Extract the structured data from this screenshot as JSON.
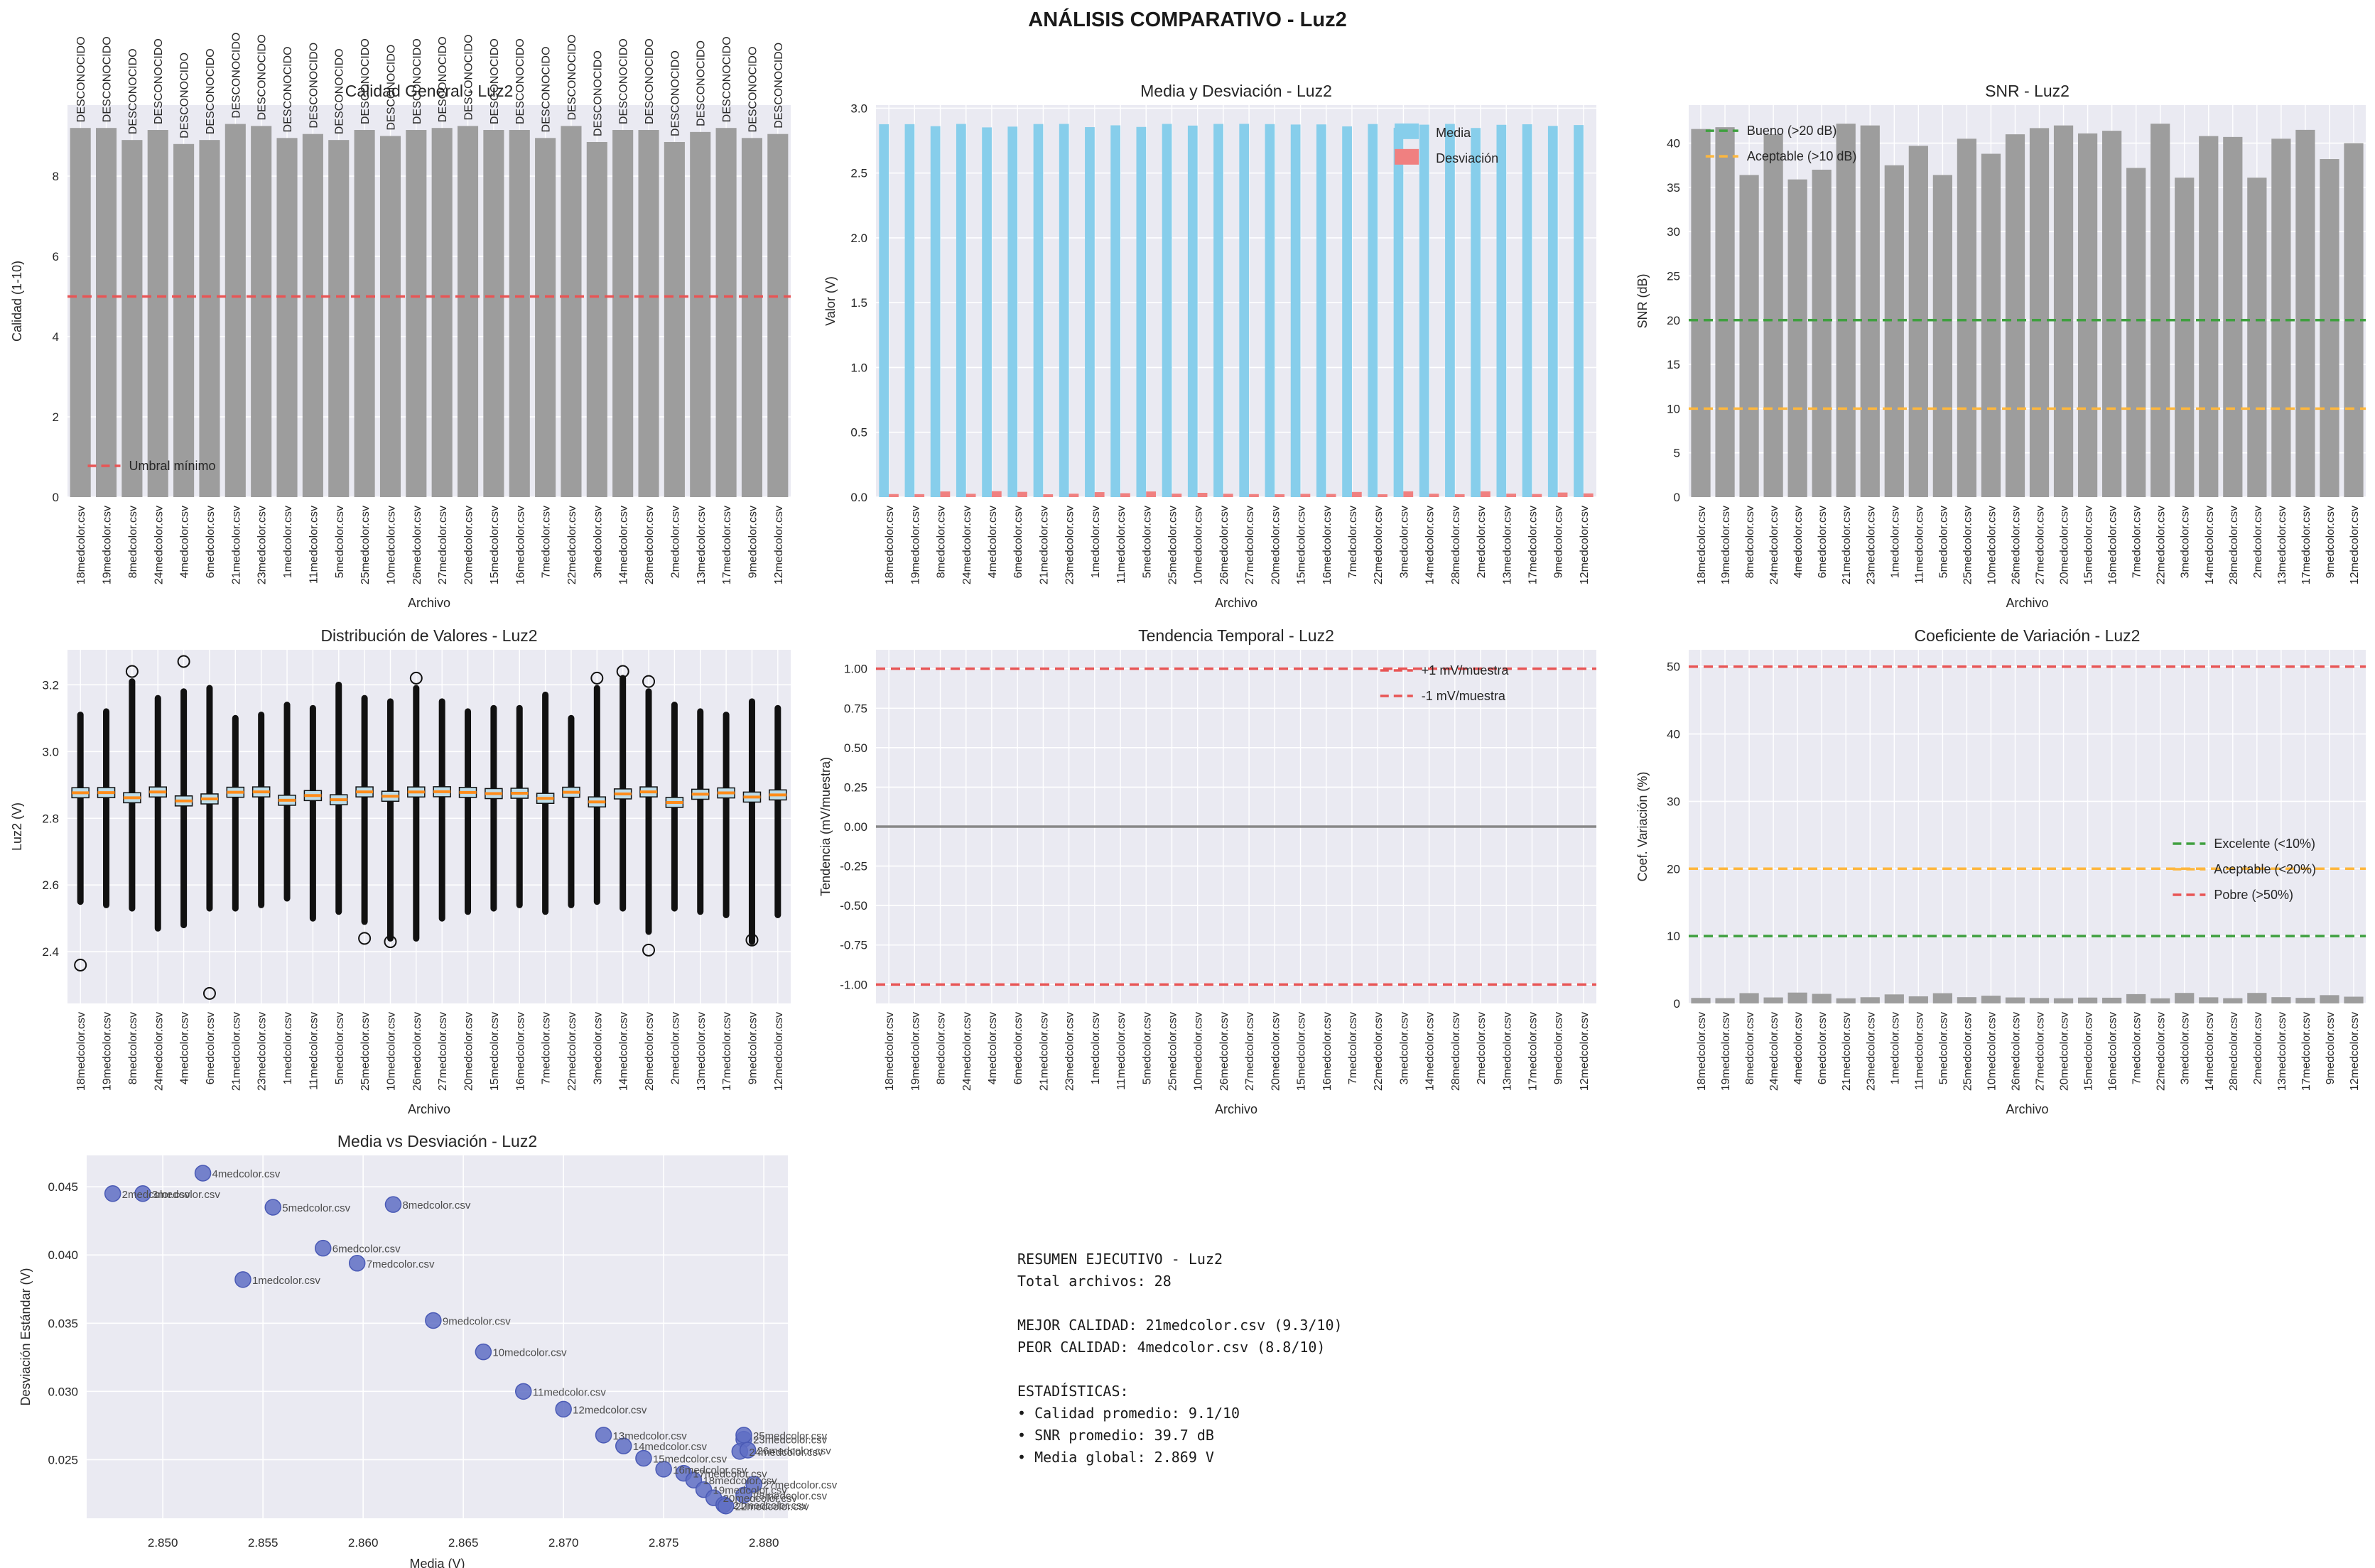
{
  "title": "ANÁLISIS COMPARATIVO - Luz2",
  "files": [
    "18medcolor.csv",
    "19medcolor.csv",
    "8medcolor.csv",
    "24medcolor.csv",
    "4medcolor.csv",
    "6medcolor.csv",
    "21medcolor.csv",
    "23medcolor.csv",
    "1medcolor.csv",
    "11medcolor.csv",
    "5medcolor.csv",
    "25medcolor.csv",
    "10medcolor.csv",
    "26medcolor.csv",
    "27medcolor.csv",
    "20medcolor.csv",
    "15medcolor.csv",
    "16medcolor.csv",
    "7medcolor.csv",
    "22medcolor.csv",
    "3medcolor.csv",
    "14medcolor.csv",
    "28medcolor.csv",
    "2medcolor.csv",
    "13medcolor.csv",
    "17medcolor.csv",
    "9medcolor.csv",
    "12medcolor.csv"
  ],
  "colors": {
    "axes_bg": "#eaeaf2",
    "grid": "#ffffff",
    "bar_gray": "#9d9d9d",
    "media_blue": "#87ceeb",
    "desv_salmon": "#f08080",
    "red_line": "#e85555",
    "green_line": "#3fa03f",
    "orange_line": "#fdb73e",
    "zero_gray": "#888888",
    "box_face": "#bedde9",
    "median_orange": "#ff8c1a",
    "scatter_fill": "#5f6fc4",
    "scatter_edge": "#4a5ab5",
    "text": "#262626"
  },
  "summary": {
    "text": "RESUMEN EJECUTIVO - Luz2\nTotal archivos: 28\n\nMEJOR CALIDAD: 21medcolor.csv (9.3/10)\nPEOR CALIDAD: 4medcolor.csv (8.8/10)\n\nESTADÍSTICAS:\n• Calidad promedio: 9.1/10\n• SNR promedio: 39.7 dB\n• Media global: 2.869 V"
  },
  "chart_data": [
    {
      "id": "calidad",
      "type": "bar",
      "title": "Calidad General - Luz2",
      "xlabel": "Archivo",
      "ylabel": "Calidad (1-10)",
      "categories": "files",
      "values": [
        9.2,
        9.2,
        8.9,
        9.15,
        8.8,
        8.9,
        9.3,
        9.25,
        8.95,
        9.05,
        8.9,
        9.15,
        9.0,
        9.15,
        9.2,
        9.25,
        9.15,
        9.15,
        8.95,
        9.25,
        8.85,
        9.15,
        9.15,
        8.85,
        9.1,
        9.2,
        8.95,
        9.05
      ],
      "bar_label": "DESCONOCIDO",
      "color": "bar_gray",
      "ylim": [
        0,
        9.77
      ],
      "yticks": [
        0,
        2,
        4,
        6,
        8
      ],
      "ytick_labels": [
        "0",
        "2",
        "4",
        "6",
        "8"
      ],
      "hlines": [
        {
          "y": 5,
          "color": "red_line",
          "style": "dash"
        }
      ],
      "legend": {
        "x": 0.028,
        "y": 0.895,
        "items": [
          {
            "label": "Umbral mínimo",
            "color": "red_line",
            "kind": "dash"
          }
        ]
      }
    },
    {
      "id": "media_desviacion",
      "type": "grouped_bar",
      "title": "Media y Desviación - Luz2",
      "xlabel": "Archivo",
      "ylabel": "Valor (V)",
      "categories": "files",
      "series": [
        {
          "name": "Media",
          "color": "media_blue",
          "values": [
            2.8765,
            2.877,
            2.8615,
            2.8788,
            2.852,
            2.858,
            2.878,
            2.879,
            2.854,
            2.868,
            2.8555,
            2.879,
            2.866,
            2.8788,
            2.8795,
            2.8775,
            2.874,
            2.875,
            2.8597,
            2.878,
            2.849,
            2.873,
            2.879,
            2.8475,
            2.872,
            2.876,
            2.8635,
            2.87
          ]
        },
        {
          "name": "Desviación",
          "color": "desv_salmon",
          "values": [
            0.0235,
            0.0227,
            0.0437,
            0.0257,
            0.046,
            0.0405,
            0.0218,
            0.0265,
            0.0382,
            0.03,
            0.0435,
            0.0268,
            0.0329,
            0.0257,
            0.0232,
            0.0222,
            0.0251,
            0.0243,
            0.0394,
            0.0218,
            0.0445,
            0.026,
            0.0225,
            0.0445,
            0.0268,
            0.024,
            0.0352,
            0.0287
          ]
        }
      ],
      "ylim": [
        0,
        3.024
      ],
      "yticks": [
        0,
        0.5,
        1.0,
        1.5,
        2.0,
        2.5,
        3.0
      ],
      "ytick_labels": [
        "0.0",
        "0.5",
        "1.0",
        "1.5",
        "2.0",
        "2.5",
        "3.0"
      ],
      "hlines": [],
      "legend": {
        "x": 0.72,
        "y": 0.045,
        "items": [
          {
            "label": "Media",
            "color": "media_blue",
            "kind": "patch"
          },
          {
            "label": "Desviación",
            "color": "desv_salmon",
            "kind": "patch"
          }
        ]
      }
    },
    {
      "id": "snr",
      "type": "bar",
      "title": "SNR - Luz2",
      "xlabel": "Archivo",
      "ylabel": "SNR (dB)",
      "categories": "files",
      "values": [
        41.6,
        41.8,
        36.4,
        41.0,
        35.9,
        37.0,
        42.2,
        42.0,
        37.5,
        39.7,
        36.4,
        40.5,
        38.8,
        41.0,
        41.7,
        42.0,
        41.1,
        41.4,
        37.2,
        42.2,
        36.1,
        40.8,
        40.7,
        36.1,
        40.5,
        41.5,
        38.2,
        40.0
      ],
      "color": "bar_gray",
      "ylim": [
        0,
        44.3
      ],
      "yticks": [
        0,
        5,
        10,
        15,
        20,
        25,
        30,
        35,
        40
      ],
      "ytick_labels": [
        "0",
        "5",
        "10",
        "15",
        "20",
        "25",
        "30",
        "35",
        "40"
      ],
      "hlines": [
        {
          "y": 20,
          "color": "green_line",
          "style": "dash"
        },
        {
          "y": 10,
          "color": "orange_line",
          "style": "dash"
        }
      ],
      "legend": {
        "x": 0.025,
        "y": 0.04,
        "items": [
          {
            "label": "Bueno (>20 dB)",
            "color": "green_line",
            "kind": "dash"
          },
          {
            "label": "Aceptable (>10 dB)",
            "color": "orange_line",
            "kind": "dash"
          }
        ]
      }
    },
    {
      "id": "distribucion",
      "type": "boxplot",
      "title": "Distribución de Valores - Luz2",
      "xlabel": "Archivo",
      "ylabel": "Luz2 (V)",
      "categories": "files",
      "box": {
        "med": [
          2.8765,
          2.877,
          2.8615,
          2.8788,
          2.852,
          2.858,
          2.878,
          2.879,
          2.854,
          2.868,
          2.8555,
          2.879,
          2.866,
          2.8788,
          2.8795,
          2.8775,
          2.874,
          2.875,
          2.8597,
          2.878,
          2.849,
          2.873,
          2.879,
          2.8475,
          2.872,
          2.876,
          2.8635,
          2.87
        ],
        "lo": [
          2.55,
          2.54,
          2.53,
          2.47,
          2.48,
          2.53,
          2.53,
          2.54,
          2.56,
          2.5,
          2.52,
          2.49,
          2.44,
          2.44,
          2.5,
          2.52,
          2.53,
          2.54,
          2.52,
          2.54,
          2.55,
          2.53,
          2.46,
          2.53,
          2.52,
          2.51,
          2.43,
          2.51
        ],
        "hi": [
          3.11,
          3.12,
          3.21,
          3.16,
          3.18,
          3.19,
          3.1,
          3.11,
          3.14,
          3.13,
          3.2,
          3.16,
          3.15,
          3.19,
          3.15,
          3.12,
          3.13,
          3.13,
          3.17,
          3.1,
          3.19,
          3.22,
          3.18,
          3.14,
          3.12,
          3.11,
          3.15,
          3.13
        ],
        "q": 0.015,
        "wk": 0.038,
        "iso": [
          [
            0,
            2.36
          ],
          [
            2,
            3.24
          ],
          [
            4,
            3.27
          ],
          [
            5,
            2.275
          ],
          [
            11,
            2.44
          ],
          [
            12,
            2.43
          ],
          [
            13,
            3.22
          ],
          [
            20,
            3.22
          ],
          [
            21,
            3.24
          ],
          [
            22,
            2.405
          ],
          [
            22,
            3.21
          ],
          [
            26,
            2.435
          ]
        ]
      },
      "ylim": [
        2.245,
        3.305
      ],
      "yticks": [
        2.4,
        2.6,
        2.8,
        3.0,
        3.2
      ],
      "ytick_labels": [
        "2.4",
        "2.6",
        "2.8",
        "3.0",
        "3.2"
      ],
      "hlines": []
    },
    {
      "id": "tendencia",
      "type": "bar",
      "title": "Tendencia Temporal - Luz2",
      "xlabel": "Archivo",
      "ylabel": "Tendencia (mV/muestra)",
      "categories": "files",
      "values": [
        0,
        0,
        0,
        0,
        0,
        0,
        0,
        0,
        0,
        0,
        0,
        0,
        0,
        0,
        0,
        0,
        0,
        0,
        0,
        0,
        0,
        0,
        0,
        0,
        0,
        0,
        0,
        0
      ],
      "color": "bar_gray",
      "ylim": [
        -1.12,
        1.12
      ],
      "yticks": [
        -1.0,
        -0.75,
        -0.5,
        -0.25,
        0,
        0.25,
        0.5,
        0.75,
        1.0
      ],
      "ytick_labels": [
        "-1.00",
        "-0.75",
        "-0.50",
        "-0.25",
        "0.00",
        "0.25",
        "0.50",
        "0.75",
        "1.00"
      ],
      "hlines": [
        {
          "y": 1,
          "color": "red_line",
          "style": "dash"
        },
        {
          "y": -1,
          "color": "red_line",
          "style": "dash"
        },
        {
          "y": 0,
          "color": "zero_gray",
          "style": "solid"
        }
      ],
      "legend": {
        "x": 0.7,
        "y": 0.03,
        "items": [
          {
            "label": "+1 mV/muestra",
            "color": "red_line",
            "kind": "dash"
          },
          {
            "label": "-1 mV/muestra",
            "color": "red_line",
            "kind": "dash"
          }
        ]
      }
    },
    {
      "id": "coef_variacion",
      "type": "bar",
      "title": "Coeficiente de Variación - Luz2",
      "xlabel": "Archivo",
      "ylabel": "Coef. Variación (%)",
      "categories": "files",
      "values": [
        0.82,
        0.79,
        1.53,
        0.89,
        1.61,
        1.42,
        0.76,
        0.92,
        1.34,
        1.05,
        1.52,
        0.93,
        1.15,
        0.89,
        0.81,
        0.77,
        0.87,
        0.85,
        1.38,
        0.76,
        1.56,
        0.91,
        0.78,
        1.56,
        0.93,
        0.83,
        1.23,
        1.0
      ],
      "color": "bar_gray",
      "ylim": [
        0,
        52.5
      ],
      "yticks": [
        0,
        10,
        20,
        30,
        40,
        50
      ],
      "ytick_labels": [
        "0",
        "10",
        "20",
        "30",
        "40",
        "50"
      ],
      "hlines": [
        {
          "y": 10,
          "color": "green_line",
          "style": "dash"
        },
        {
          "y": 20,
          "color": "orange_line",
          "style": "dash"
        },
        {
          "y": 50,
          "color": "red_line",
          "style": "dash"
        }
      ],
      "legend": {
        "x": 0.715,
        "y": 0.52,
        "items": [
          {
            "label": "Excelente (<10%)",
            "color": "green_line",
            "kind": "dash"
          },
          {
            "label": "Aceptable (<20%)",
            "color": "orange_line",
            "kind": "dash"
          },
          {
            "label": "Pobre (>50%)",
            "color": "red_line",
            "kind": "dash"
          }
        ]
      }
    },
    {
      "id": "media_vs_desviacion",
      "type": "scatter",
      "title": "Media vs Desviación - Luz2",
      "xlabel": "Media (V)",
      "ylabel": "Desviación Estándar (V)",
      "points": [
        {
          "label": "1medcolor.csv",
          "x": 2.854,
          "y": 0.0382
        },
        {
          "label": "2medcolor.csv",
          "x": 2.8475,
          "y": 0.0445
        },
        {
          "label": "3medcolor.csv",
          "x": 2.849,
          "y": 0.0445
        },
        {
          "label": "4medcolor.csv",
          "x": 2.852,
          "y": 0.046
        },
        {
          "label": "5medcolor.csv",
          "x": 2.8555,
          "y": 0.0435
        },
        {
          "label": "6medcolor.csv",
          "x": 2.858,
          "y": 0.0405
        },
        {
          "label": "7medcolor.csv",
          "x": 2.8597,
          "y": 0.0394
        },
        {
          "label": "8medcolor.csv",
          "x": 2.8615,
          "y": 0.0437
        },
        {
          "label": "9medcolor.csv",
          "x": 2.8635,
          "y": 0.0352
        },
        {
          "label": "10medcolor.csv",
          "x": 2.866,
          "y": 0.0329
        },
        {
          "label": "11medcolor.csv",
          "x": 2.868,
          "y": 0.03
        },
        {
          "label": "12medcolor.csv",
          "x": 2.87,
          "y": 0.0287
        },
        {
          "label": "13medcolor.csv",
          "x": 2.872,
          "y": 0.0268
        },
        {
          "label": "14medcolor.csv",
          "x": 2.873,
          "y": 0.026
        },
        {
          "label": "15medcolor.csv",
          "x": 2.874,
          "y": 0.0251
        },
        {
          "label": "16medcolor.csv",
          "x": 2.875,
          "y": 0.0243
        },
        {
          "label": "17medcolor.csv",
          "x": 2.876,
          "y": 0.024
        },
        {
          "label": "18medcolor.csv",
          "x": 2.8765,
          "y": 0.0235
        },
        {
          "label": "19medcolor.csv",
          "x": 2.877,
          "y": 0.0228
        },
        {
          "label": "20medcolor.csv",
          "x": 2.8775,
          "y": 0.0222
        },
        {
          "label": "21medcolor.csv",
          "x": 2.878,
          "y": 0.0217
        },
        {
          "label": "22medcolor.csv",
          "x": 2.8781,
          "y": 0.0216
        },
        {
          "label": "23medcolor.csv",
          "x": 2.879,
          "y": 0.0265
        },
        {
          "label": "24medcolor.csv",
          "x": 2.8788,
          "y": 0.0256
        },
        {
          "label": "25medcolor.csv",
          "x": 2.879,
          "y": 0.0268
        },
        {
          "label": "26medcolor.csv",
          "x": 2.8792,
          "y": 0.0257
        },
        {
          "label": "27medcolor.csv",
          "x": 2.8795,
          "y": 0.0232
        },
        {
          "label": "28medcolor.csv",
          "x": 2.879,
          "y": 0.0224
        }
      ],
      "xlim": [
        2.8462,
        2.8812
      ],
      "xticks": [
        2.85,
        2.855,
        2.86,
        2.865,
        2.87,
        2.875,
        2.88
      ],
      "xtick_labels": [
        "2.850",
        "2.855",
        "2.860",
        "2.865",
        "2.870",
        "2.875",
        "2.880"
      ],
      "ylim": [
        0.0207,
        0.0473
      ],
      "yticks": [
        0.025,
        0.03,
        0.035,
        0.04,
        0.045
      ],
      "ytick_labels": [
        "0.025",
        "0.030",
        "0.035",
        "0.040",
        "0.045"
      ],
      "hlines": []
    }
  ]
}
